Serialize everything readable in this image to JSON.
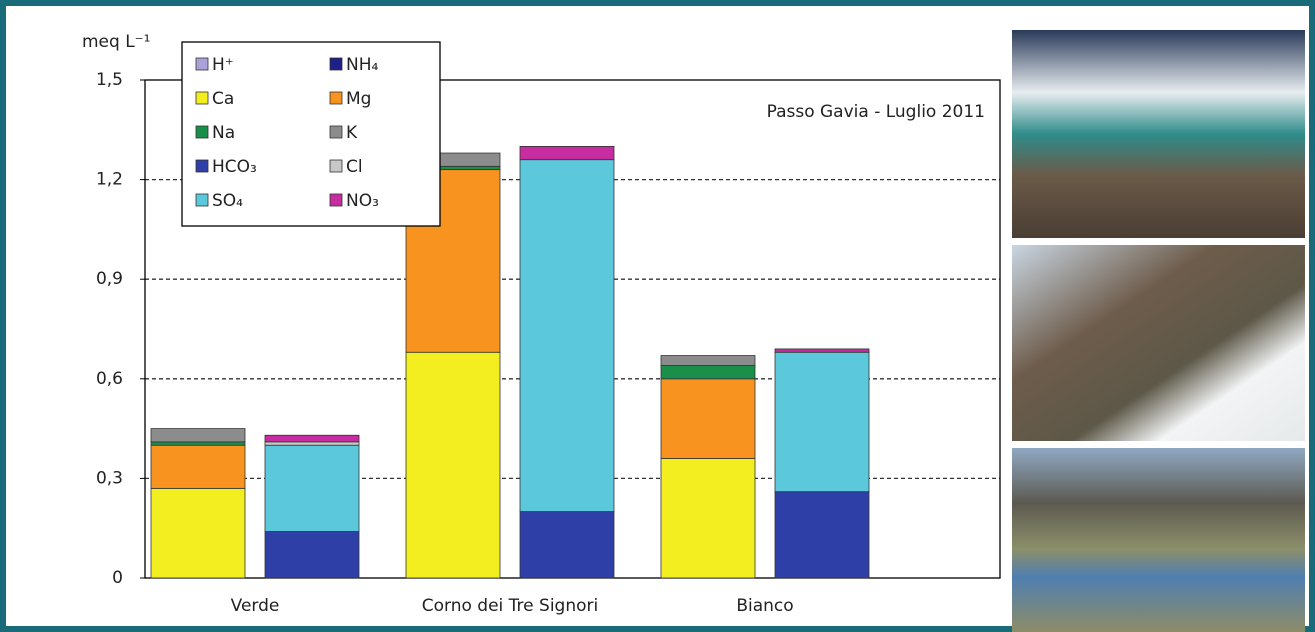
{
  "chart_data": {
    "type": "stacked-pair-bar",
    "ylabel": "meq L⁻¹",
    "annotation": "Passo Gavia - Luglio 2011",
    "categories": [
      "Verde",
      "Corno dei Tre Signori",
      "Bianco"
    ],
    "series": [
      {
        "name": "Ca",
        "color": "#f3ee1f",
        "stack": "cations",
        "values": [
          0.27,
          0.68,
          0.36
        ]
      },
      {
        "name": "Mg",
        "color": "#f7931e",
        "stack": "cations",
        "values": [
          0.13,
          0.55,
          0.24
        ]
      },
      {
        "name": "Na",
        "color": "#1a8f4a",
        "stack": "cations",
        "values": [
          0.01,
          0.01,
          0.04
        ]
      },
      {
        "name": "K",
        "color": "#8c8c8c",
        "stack": "cations",
        "values": [
          0.04,
          0.04,
          0.03
        ]
      },
      {
        "name": "H⁺",
        "color": "#a9a3d9",
        "stack": "cations",
        "values": [
          0,
          0,
          0
        ]
      },
      {
        "name": "NH₄",
        "color": "#1f1f8a",
        "stack": "cations",
        "values": [
          0,
          0,
          0
        ]
      },
      {
        "name": "HCO₃",
        "color": "#2e3fa8",
        "stack": "anions",
        "values": [
          0.14,
          0.2,
          0.26
        ]
      },
      {
        "name": "SO₄",
        "color": "#5bc8db",
        "stack": "anions",
        "values": [
          0.26,
          1.06,
          0.42
        ]
      },
      {
        "name": "Cl",
        "color": "#c8c8c8",
        "stack": "anions",
        "values": [
          0.01,
          0,
          0
        ]
      },
      {
        "name": "NO₃",
        "color": "#c72ca0",
        "stack": "anions",
        "values": [
          0.02,
          0.04,
          0.01
        ]
      }
    ],
    "legend_order": [
      4,
      5,
      0,
      1,
      2,
      3,
      6,
      8,
      7,
      9
    ],
    "ylim": [
      0,
      1.5
    ],
    "yticks": [
      0,
      {
        "value": 0.3,
        "label": "0,3"
      },
      {
        "value": 0.6,
        "label": "0,6"
      },
      {
        "value": 0.9,
        "label": "0,9"
      },
      {
        "value": 1.2,
        "label": "1,2"
      },
      {
        "value": 1.5,
        "label": "1,5"
      }
    ],
    "grid": true
  }
}
